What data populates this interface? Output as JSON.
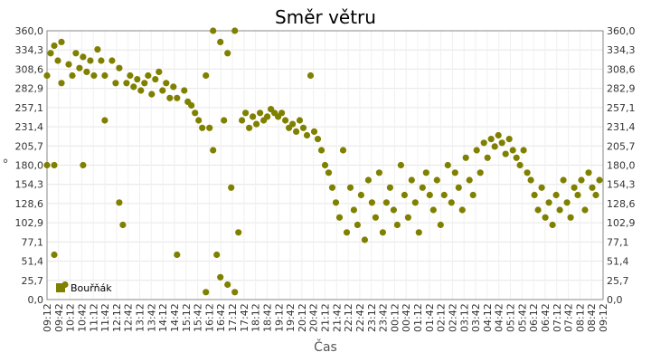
{
  "chart_data": {
    "type": "scatter",
    "title": "Směr větru",
    "xlabel": "Čas",
    "ylabel": "°",
    "ylim": [
      0,
      360
    ],
    "y_ticks": [
      "0,0",
      "25,7",
      "51,4",
      "77,1",
      "102,9",
      "128,6",
      "154,3",
      "180,0",
      "205,7",
      "231,4",
      "257,1",
      "282,9",
      "308,6",
      "334,3",
      "360,0"
    ],
    "x_ticks": [
      "09:12",
      "09:42",
      "10:12",
      "10:42",
      "11:12",
      "11:42",
      "12:12",
      "12:42",
      "13:12",
      "13:42",
      "14:12",
      "14:42",
      "15:12",
      "15:42",
      "16:12",
      "16:42",
      "17:12",
      "17:42",
      "18:12",
      "18:42",
      "19:12",
      "19:42",
      "20:12",
      "20:42",
      "21:12",
      "21:42",
      "22:12",
      "22:42",
      "23:12",
      "23:42",
      "00:12",
      "00:42",
      "01:12",
      "01:42",
      "02:12",
      "02:42",
      "03:12",
      "03:42",
      "04:12",
      "04:42",
      "05:12",
      "05:42",
      "06:12",
      "06:42",
      "07:12",
      "07:42",
      "08:12",
      "08:42",
      "09:12"
    ],
    "grid": true,
    "legend_position": "bottom-left",
    "series": [
      {
        "name": "Bouřňák",
        "color": "#808000",
        "points": [
          [
            0,
            180
          ],
          [
            0,
            300
          ],
          [
            0.5,
            330
          ],
          [
            1,
            340
          ],
          [
            1,
            180
          ],
          [
            1,
            60
          ],
          [
            1.5,
            320
          ],
          [
            2,
            345
          ],
          [
            2,
            290
          ],
          [
            2.5,
            20
          ],
          [
            3,
            315
          ],
          [
            3.5,
            300
          ],
          [
            4,
            330
          ],
          [
            4.5,
            310
          ],
          [
            5,
            325
          ],
          [
            5,
            180
          ],
          [
            5.5,
            305
          ],
          [
            6,
            320
          ],
          [
            6.5,
            300
          ],
          [
            7,
            335
          ],
          [
            7.5,
            320
          ],
          [
            8,
            300
          ],
          [
            8,
            240
          ],
          [
            9,
            320
          ],
          [
            9.5,
            290
          ],
          [
            10,
            310
          ],
          [
            10,
            130
          ],
          [
            10.5,
            100
          ],
          [
            11,
            290
          ],
          [
            11.5,
            300
          ],
          [
            12,
            285
          ],
          [
            12.5,
            295
          ],
          [
            13,
            280
          ],
          [
            13.5,
            290
          ],
          [
            14,
            300
          ],
          [
            14.5,
            275
          ],
          [
            15,
            295
          ],
          [
            15.5,
            305
          ],
          [
            16,
            280
          ],
          [
            16.5,
            290
          ],
          [
            17,
            270
          ],
          [
            17.5,
            285
          ],
          [
            18,
            270
          ],
          [
            18,
            60
          ],
          [
            19,
            280
          ],
          [
            19.5,
            265
          ],
          [
            20,
            260
          ],
          [
            20.5,
            250
          ],
          [
            21,
            240
          ],
          [
            21.5,
            230
          ],
          [
            22,
            300
          ],
          [
            22,
            10
          ],
          [
            22.5,
            230
          ],
          [
            23,
            360
          ],
          [
            23,
            200
          ],
          [
            23.5,
            60
          ],
          [
            24,
            345
          ],
          [
            24,
            30
          ],
          [
            24.5,
            240
          ],
          [
            25,
            330
          ],
          [
            25,
            20
          ],
          [
            25.5,
            150
          ],
          [
            26,
            360
          ],
          [
            26,
            10
          ],
          [
            26.5,
            90
          ],
          [
            27,
            240
          ],
          [
            27.5,
            250
          ],
          [
            28,
            230
          ],
          [
            28.5,
            245
          ],
          [
            29,
            235
          ],
          [
            29.5,
            250
          ],
          [
            30,
            240
          ],
          [
            30.5,
            245
          ],
          [
            31,
            255
          ],
          [
            31.5,
            250
          ],
          [
            32,
            245
          ],
          [
            32.5,
            250
          ],
          [
            33,
            240
          ],
          [
            33.5,
            230
          ],
          [
            34,
            235
          ],
          [
            34.5,
            225
          ],
          [
            35,
            240
          ],
          [
            35.5,
            230
          ],
          [
            36,
            220
          ],
          [
            36.5,
            300
          ],
          [
            37,
            225
          ],
          [
            37.5,
            215
          ],
          [
            38,
            200
          ],
          [
            38.5,
            180
          ],
          [
            39,
            170
          ],
          [
            39.5,
            150
          ],
          [
            40,
            130
          ],
          [
            40.5,
            110
          ],
          [
            41,
            200
          ],
          [
            41.5,
            90
          ],
          [
            42,
            150
          ],
          [
            42.5,
            120
          ],
          [
            43,
            100
          ],
          [
            43.5,
            140
          ],
          [
            44,
            80
          ],
          [
            44.5,
            160
          ],
          [
            45,
            130
          ],
          [
            45.5,
            110
          ],
          [
            46,
            170
          ],
          [
            46.5,
            90
          ],
          [
            47,
            130
          ],
          [
            47.5,
            150
          ],
          [
            48,
            120
          ],
          [
            48.5,
            100
          ],
          [
            49,
            180
          ],
          [
            49.5,
            140
          ],
          [
            50,
            110
          ],
          [
            50.5,
            160
          ],
          [
            51,
            130
          ],
          [
            51.5,
            90
          ],
          [
            52,
            150
          ],
          [
            52.5,
            170
          ],
          [
            53,
            140
          ],
          [
            53.5,
            120
          ],
          [
            54,
            160
          ],
          [
            54.5,
            100
          ],
          [
            55,
            140
          ],
          [
            55.5,
            180
          ],
          [
            56,
            130
          ],
          [
            56.5,
            170
          ],
          [
            57,
            150
          ],
          [
            57.5,
            120
          ],
          [
            58,
            190
          ],
          [
            58.5,
            160
          ],
          [
            59,
            140
          ],
          [
            59.5,
            200
          ],
          [
            60,
            170
          ],
          [
            60.5,
            210
          ],
          [
            61,
            190
          ],
          [
            61.5,
            215
          ],
          [
            62,
            205
          ],
          [
            62.5,
            220
          ],
          [
            63,
            210
          ],
          [
            63.5,
            195
          ],
          [
            64,
            215
          ],
          [
            64.5,
            200
          ],
          [
            65,
            190
          ],
          [
            65.5,
            180
          ],
          [
            66,
            200
          ],
          [
            66.5,
            170
          ],
          [
            67,
            160
          ],
          [
            67.5,
            140
          ],
          [
            68,
            120
          ],
          [
            68.5,
            150
          ],
          [
            69,
            110
          ],
          [
            69.5,
            130
          ],
          [
            70,
            100
          ],
          [
            70.5,
            140
          ],
          [
            71,
            120
          ],
          [
            71.5,
            160
          ],
          [
            72,
            130
          ],
          [
            72.5,
            110
          ],
          [
            73,
            150
          ],
          [
            73.5,
            140
          ],
          [
            74,
            160
          ],
          [
            74.5,
            120
          ],
          [
            75,
            170
          ],
          [
            75.5,
            150
          ],
          [
            76,
            140
          ],
          [
            76.5,
            160
          ]
        ]
      }
    ],
    "x_extent": [
      0,
      77
    ]
  }
}
